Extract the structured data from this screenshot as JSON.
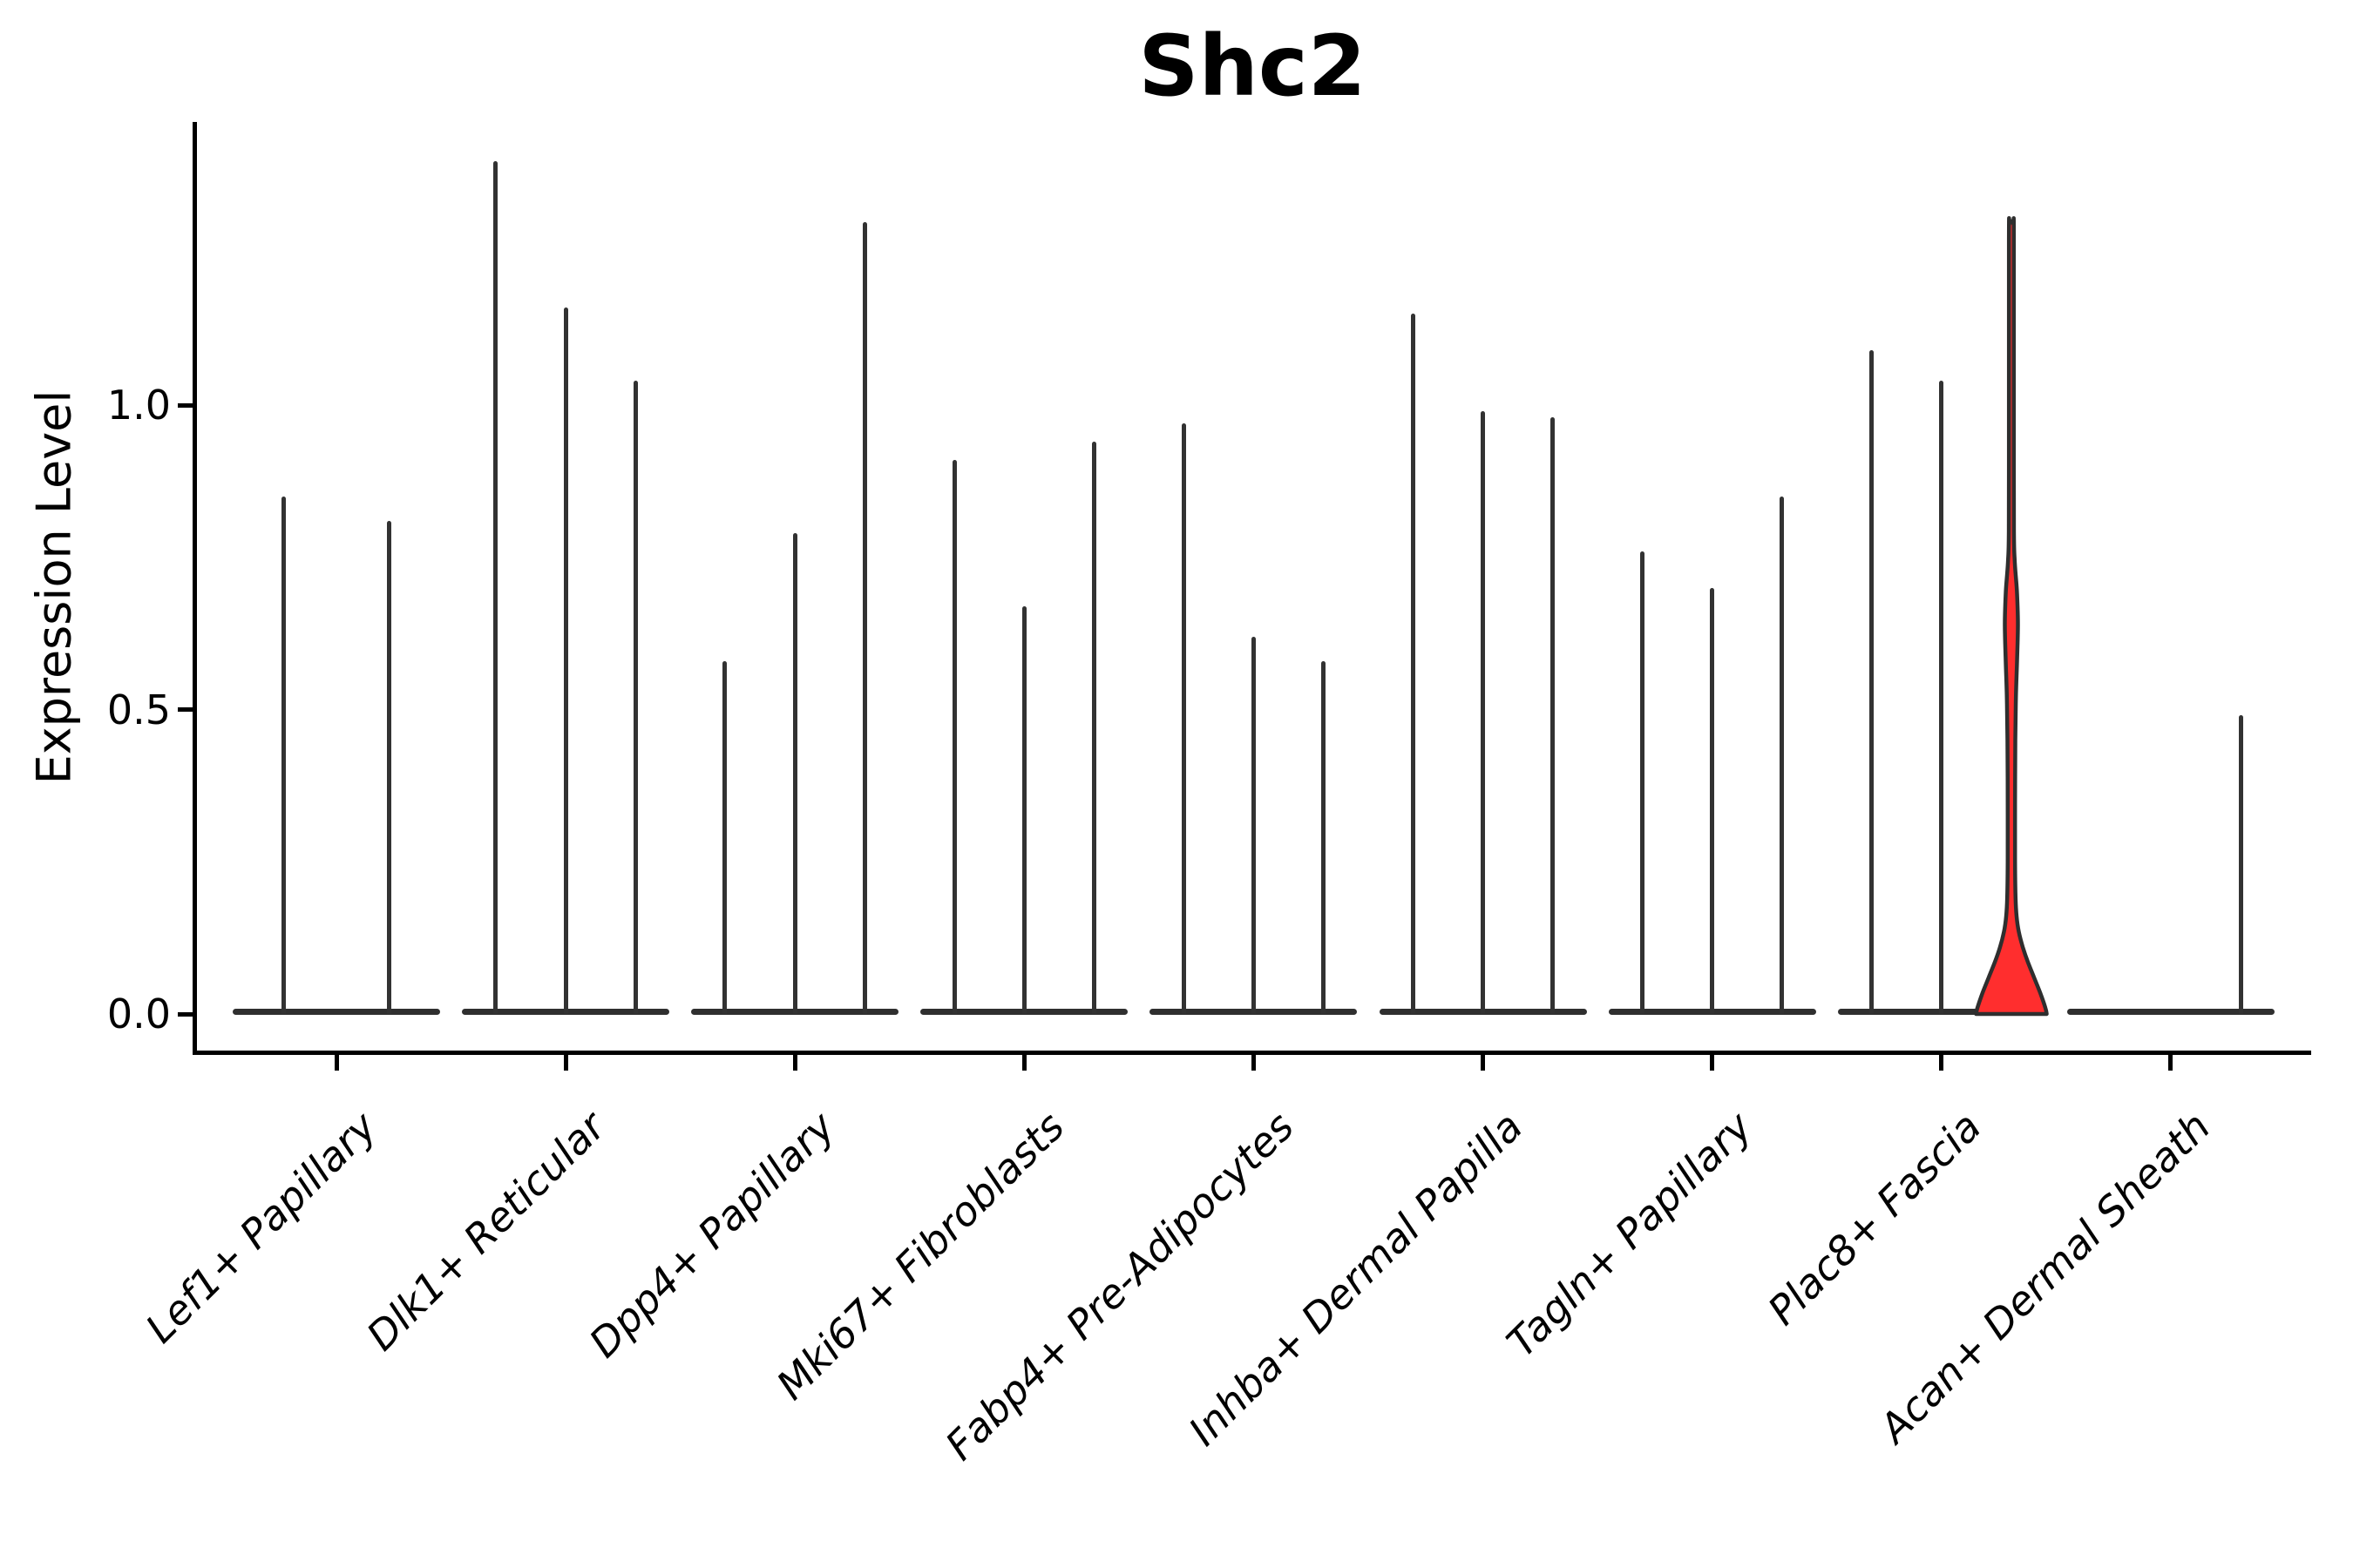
{
  "title": "Shc2",
  "y_axis": {
    "label": "Expression Level",
    "tick_labels": [
      "0.0",
      "0.5",
      "1.0"
    ],
    "tick_values": [
      0.0,
      0.5,
      1.0
    ]
  },
  "x_axis": {
    "categories": [
      "Lef1+ Papillary",
      "Dlk1+ Reticular",
      "Dpp4+ Papillary",
      "Mki67+ Fibroblasts",
      "Fabp4+ Pre-Adipocytes",
      "Inhba+ Dermal Papilla",
      "Tagln+ Papillary",
      "Plac8+ Fascia",
      "Acan+ Dermal Sheath"
    ]
  },
  "colors": {
    "highlight_fill": "#FF2E2E",
    "violin_stroke": "#2E2E2E",
    "spike": "#323232",
    "axis": "#000000",
    "background": "#ffffff"
  },
  "chart_data": {
    "type": "violin",
    "title": "Shc2",
    "xlabel": "",
    "ylabel": "Expression Level",
    "ylim": [
      0,
      1.47
    ],
    "yticks": [
      0.0,
      0.5,
      1.0
    ],
    "grid": false,
    "legend": null,
    "categories": [
      "Lef1+ Papillary",
      "Dlk1+ Reticular",
      "Dpp4+ Papillary",
      "Mki67+ Fibroblasts",
      "Fabp4+ Pre-Adipocytes",
      "Inhba+ Dermal Papilla",
      "Tagln+ Papillary",
      "Plac8+ Fascia",
      "Acan+ Dermal Sheath"
    ],
    "groups": [
      {
        "category": "Lef1+ Papillary",
        "violin_maxima": [
          0.85,
          0.81
        ],
        "highlighted_violin": null
      },
      {
        "category": "Dlk1+ Reticular",
        "violin_maxima": [
          1.4,
          1.16,
          1.04
        ],
        "highlighted_violin": null
      },
      {
        "category": "Dpp4+ Papillary",
        "violin_maxima": [
          0.58,
          0.79,
          1.3
        ],
        "highlighted_violin": null
      },
      {
        "category": "Mki67+ Fibroblasts",
        "violin_maxima": [
          0.91,
          0.67,
          0.94
        ],
        "highlighted_violin": null
      },
      {
        "category": "Fabp4+ Pre-Adipocytes",
        "violin_maxima": [
          0.97,
          0.62,
          0.58
        ],
        "highlighted_violin": null
      },
      {
        "category": "Inhba+ Dermal Papilla",
        "violin_maxima": [
          1.15,
          0.99,
          0.98
        ],
        "highlighted_violin": null
      },
      {
        "category": "Tagln+ Papillary",
        "violin_maxima": [
          0.76,
          0.7,
          0.85
        ],
        "highlighted_violin": null
      },
      {
        "category": "Plac8+ Fascia",
        "violin_maxima": [
          1.09,
          1.04,
          1.3
        ],
        "highlighted_violin": 2
      },
      {
        "category": "Acan+ Dermal Sheath",
        "violin_maxima": [
          0.0,
          0.0,
          0.49
        ],
        "highlighted_violin": null
      }
    ],
    "highlight_profile": [
      [
        1.297,
        2.5
      ],
      [
        1.27,
        2.8
      ],
      [
        0.9,
        2.8
      ],
      [
        0.78,
        3.0
      ],
      [
        0.745,
        3.8
      ],
      [
        0.72,
        5.0
      ],
      [
        0.69,
        6.5
      ],
      [
        0.64,
        7.5
      ],
      [
        0.58,
        6.5
      ],
      [
        0.52,
        5.2
      ],
      [
        0.45,
        4.5
      ],
      [
        0.35,
        4.2
      ],
      [
        0.25,
        4.2
      ],
      [
        0.19,
        4.8
      ],
      [
        0.16,
        6.0
      ],
      [
        0.135,
        8.5
      ],
      [
        0.11,
        13.0
      ],
      [
        0.085,
        19.0
      ],
      [
        0.06,
        26.0
      ],
      [
        0.035,
        33.0
      ],
      [
        0.01,
        39.0
      ],
      [
        0.0,
        40.5
      ]
    ]
  }
}
